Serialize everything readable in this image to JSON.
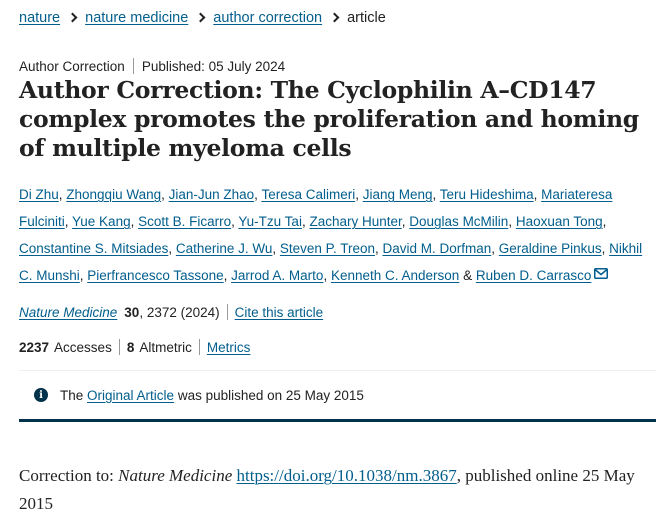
{
  "breadcrumb": {
    "items": [
      "nature",
      "nature medicine",
      "author correction"
    ],
    "current": "article"
  },
  "meta": {
    "type": "Author Correction",
    "published": "Published: 05 July 2024"
  },
  "title": "Author Correction: The Cyclophilin A–CD147 complex promotes the proliferation and homing of multiple myeloma cells",
  "authors": [
    "Di Zhu",
    "Zhongqiu Wang",
    "Jian-Jun Zhao",
    "Teresa Calimeri",
    "Jiang Meng",
    "Teru Hideshima",
    "Mariateresa Fulciniti",
    "Yue Kang",
    "Scott B. Ficarro",
    "Yu-Tzu Tai",
    "Zachary Hunter",
    "Douglas McMilin",
    "Haoxuan Tong",
    "Constantine S. Mitsiades",
    "Catherine J. Wu",
    "Steven P. Treon",
    "David M. Dorfman",
    "Geraldine Pinkus",
    "Nikhil C. Munshi",
    "Pierfrancesco Tassone",
    "Jarrod A. Marto",
    "Kenneth C. Anderson"
  ],
  "authors_conjunction": "&",
  "last_author": "Ruben D. Carrasco",
  "icons": {
    "mail": "mail-icon",
    "info": "info-icon",
    "chevron": "chevron-right-icon"
  },
  "citation": {
    "journal": "Nature Medicine",
    "volume": "30",
    "pages_year": ", 2372 (2024)",
    "cite_link": "Cite this article"
  },
  "metrics": {
    "accesses_count": "2237",
    "accesses_label": "Accesses",
    "altmetric_count": "8",
    "altmetric_label": "Altmetric",
    "metrics_link": "Metrics"
  },
  "notice": {
    "prefix": "The ",
    "link": "Original Article",
    "suffix": " was published on 25 May 2015"
  },
  "correction": {
    "prefix": "Correction to: ",
    "journal": "Nature Medicine",
    "doi": "https://doi.org/10.1038/nm.3867",
    "suffix": ", published online 25 May 2015"
  },
  "colors": {
    "link": "#025e8d",
    "accent": "#01324b",
    "text": "#222222"
  }
}
